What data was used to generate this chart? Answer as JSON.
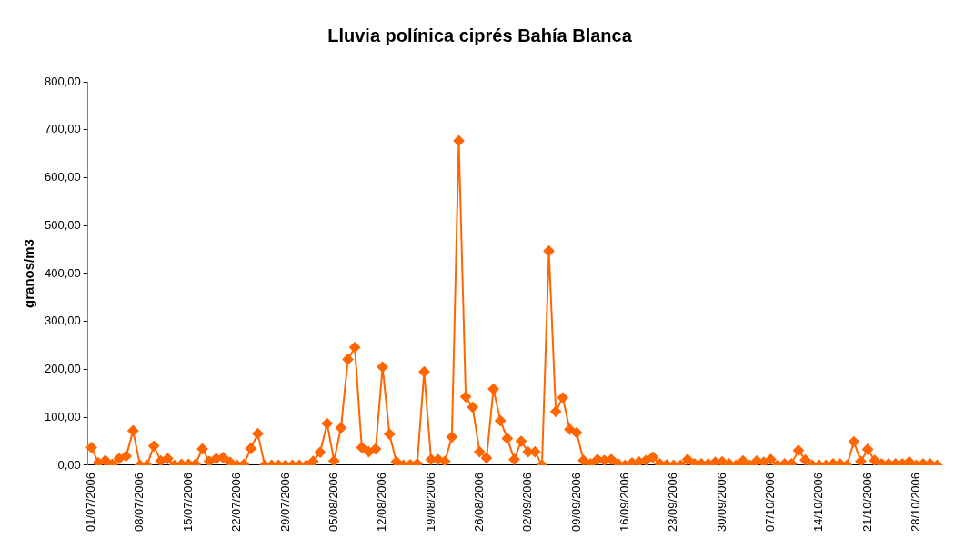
{
  "chart_data": {
    "type": "line",
    "title": "Lluvia polínica ciprés Bahía Blanca",
    "ylabel": "granos/m3",
    "categories": [
      "01/07/2006",
      null,
      null,
      null,
      null,
      null,
      null,
      "08/07/2006",
      null,
      null,
      null,
      null,
      null,
      null,
      "15/07/2006",
      null,
      null,
      null,
      null,
      null,
      null,
      "22/07/2006",
      null,
      null,
      null,
      null,
      null,
      null,
      "29/07/2006",
      null,
      null,
      null,
      null,
      null,
      null,
      "05/08/2006",
      null,
      null,
      null,
      null,
      null,
      null,
      "12/08/2006",
      null,
      null,
      null,
      null,
      null,
      null,
      "19/08/2006",
      null,
      null,
      null,
      null,
      null,
      null,
      "26/08/2006",
      null,
      null,
      null,
      null,
      null,
      null,
      "02/09/2006",
      null,
      null,
      null,
      null,
      null,
      null,
      "09/09/2006",
      null,
      null,
      null,
      null,
      null,
      null,
      "16/09/2006",
      null,
      null,
      null,
      null,
      null,
      null,
      "23/09/2006",
      null,
      null,
      null,
      null,
      null,
      null,
      "30/09/2006",
      null,
      null,
      null,
      null,
      null,
      null,
      "07/10/2006",
      null,
      null,
      null,
      null,
      null,
      null,
      "14/10/2006",
      null,
      null,
      null,
      null,
      null,
      null,
      "21/10/2006",
      null,
      null,
      null,
      null,
      null,
      null,
      "28/10/2006",
      null,
      null,
      null
    ],
    "series": [
      {
        "color": "#ff6600",
        "values": [
          37,
          5,
          10,
          2,
          14,
          19,
          72,
          0,
          0,
          40,
          9,
          14,
          0,
          2,
          2,
          2,
          34,
          8,
          14,
          16,
          6,
          0,
          2,
          35,
          66,
          0,
          0,
          0,
          0,
          0,
          0,
          0,
          8,
          27,
          87,
          9,
          78,
          221,
          246,
          37,
          28,
          34,
          205,
          65,
          7,
          0,
          1,
          3,
          195,
          12,
          12,
          8,
          59,
          677,
          143,
          121,
          28,
          15,
          159,
          93,
          56,
          12,
          50,
          28,
          28,
          0,
          447,
          112,
          141,
          75,
          68,
          10,
          3,
          12,
          10,
          12,
          3,
          0,
          5,
          7,
          10,
          17,
          3,
          1,
          0,
          0,
          12,
          3,
          3,
          3,
          6,
          7,
          3,
          0,
          9,
          0,
          9,
          6,
          12,
          0,
          3,
          3,
          31,
          11,
          0,
          0,
          0,
          3,
          3,
          0,
          49,
          8,
          33,
          10,
          3,
          3,
          3,
          3,
          7,
          0,
          3,
          3,
          0
        ]
      }
    ],
    "ylim": [
      0,
      800
    ],
    "yticks": [
      {
        "value": 0,
        "label": "0,00"
      },
      {
        "value": 100,
        "label": "100,00"
      },
      {
        "value": 200,
        "label": "200,00"
      },
      {
        "value": 300,
        "label": "300,00"
      },
      {
        "value": 400,
        "label": "400,00"
      },
      {
        "value": 500,
        "label": "500,00"
      },
      {
        "value": 600,
        "label": "600,00"
      },
      {
        "value": 700,
        "label": "700,00"
      },
      {
        "value": 800,
        "label": "800,00"
      }
    ],
    "grid": false,
    "legend": false,
    "marker": "diamond",
    "line_style": "solid"
  }
}
